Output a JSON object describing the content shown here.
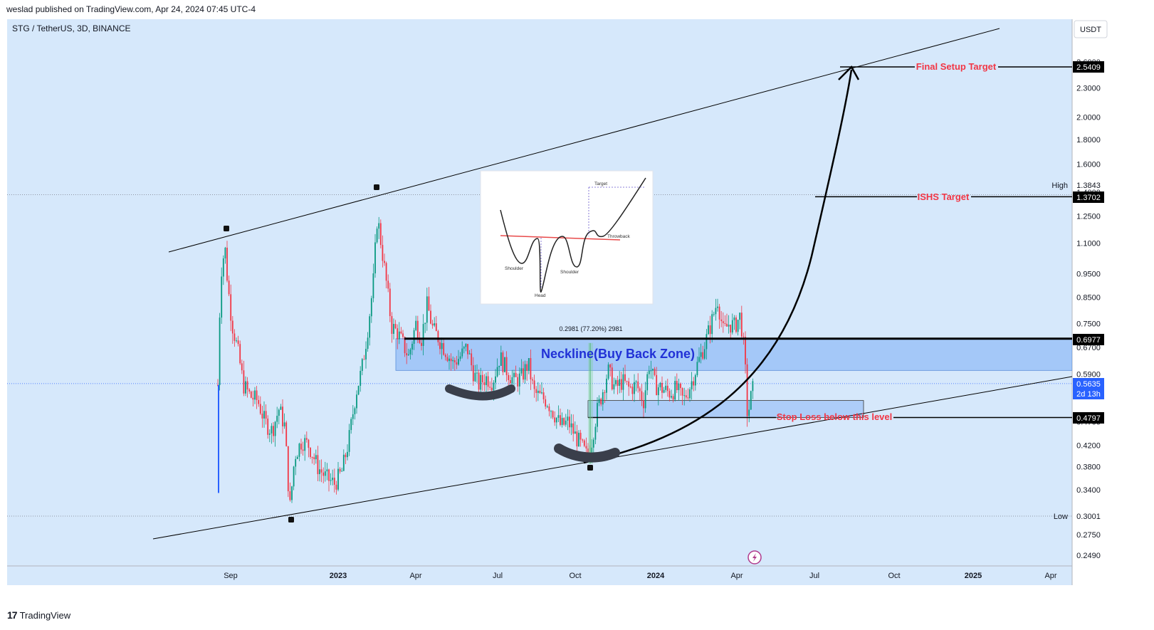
{
  "header": {
    "published": "weslad published on TradingView.com, Apr 24, 2024 07:45 UTC-4"
  },
  "footer": {
    "brand": "TradingView",
    "logo_glyph": "17"
  },
  "chart_data": {
    "type": "candlestick",
    "symbol_label": "STG / TetherUS, 3D, BINANCE",
    "currency": "USDT",
    "y_scale": "log",
    "ylim": [
      0.22,
      2.8
    ],
    "x_ticks": [
      "Sep",
      "2023",
      "Apr",
      "Jul",
      "Oct",
      "2024",
      "Apr",
      "Jul",
      "Oct",
      "2025",
      "Apr"
    ],
    "y_ticks": [
      "2.6000",
      "2.3000",
      "2.0000",
      "1.8000",
      "1.6000",
      "1.4000",
      "1.2500",
      "1.1000",
      "0.9500",
      "0.8500",
      "0.7500",
      "0.6700",
      "0.5900",
      "0.5300",
      "0.4700",
      "0.4200",
      "0.3800",
      "0.3400",
      "0.3000",
      "0.2750",
      "0.2490"
    ],
    "price_labels": {
      "final_target": "2.5409",
      "high_label": "High",
      "high": "1.3843",
      "ishs_target": "1.3702",
      "neckline": "0.6977",
      "current": "0.5635",
      "countdown": "2d 13h",
      "stop_loss": "0.4797",
      "low_label": "Low",
      "low": "0.3001"
    },
    "levels": {
      "final_target": 2.5409,
      "high": 1.3843,
      "ishs_target": 1.3702,
      "neckline_top": 0.6977,
      "neckline_bottom": 0.6,
      "current": 0.5635,
      "box_top": 0.52,
      "stop_loss": 0.4797,
      "low": 0.3001
    },
    "annotations": {
      "final_target": "Final Setup Target",
      "ishs_target": "ISHS Target",
      "neckline_zone": "Neckline(Buy Back Zone)",
      "stop_loss": "Stop Loss below this level",
      "measure": "0.2981 (77.20%) 2981"
    },
    "inset": {
      "shoulder_left": "Shoulder",
      "head": "Head",
      "shoulder_right": "Shoulder",
      "target": "Target",
      "throwback": "Throwback"
    },
    "colors": {
      "background": "#d6e8fb",
      "up": "#089981",
      "down": "#f23645",
      "zone": "#9bc2f7",
      "annotation": "#f23645",
      "neckline_text": "#2131d6",
      "current_badge": "#2962ff"
    }
  }
}
